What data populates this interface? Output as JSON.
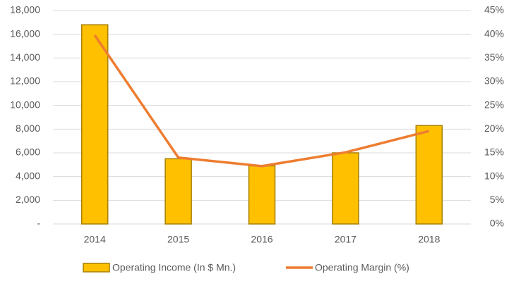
{
  "chart_data": {
    "type": "bar-line",
    "categories": [
      "2014",
      "2015",
      "2016",
      "2017",
      "2018"
    ],
    "series": [
      {
        "name": "Operating Income (In $ Mn.)",
        "type": "bar",
        "color": "#ffc000",
        "values": [
          16800,
          5500,
          4900,
          6000,
          8300
        ]
      },
      {
        "name": "Operating Margin (%)",
        "type": "line",
        "color": "#ed7d31",
        "axis": "y2",
        "values": [
          39.8,
          14,
          12.2,
          15.1,
          19.6
        ]
      }
    ],
    "ylim": [
      0,
      18000
    ],
    "yticks": [
      {
        "value": 0,
        "label": "-"
      },
      {
        "value": 2000,
        "label": "2,000"
      },
      {
        "value": 4000,
        "label": "4,000"
      },
      {
        "value": 6000,
        "label": "6,000"
      },
      {
        "value": 8000,
        "label": "8,000"
      },
      {
        "value": 10000,
        "label": "10,000"
      },
      {
        "value": 12000,
        "label": "12,000"
      },
      {
        "value": 14000,
        "label": "14,000"
      },
      {
        "value": 16000,
        "label": "16,000"
      },
      {
        "value": 18000,
        "label": "18,000"
      }
    ],
    "y2lim": [
      0,
      45
    ],
    "y2ticks": [
      {
        "value": 0,
        "label": "0%"
      },
      {
        "value": 5,
        "label": "5%"
      },
      {
        "value": 10,
        "label": "10%"
      },
      {
        "value": 15,
        "label": "15%"
      },
      {
        "value": 20,
        "label": "20%"
      },
      {
        "value": 25,
        "label": "25%"
      },
      {
        "value": 30,
        "label": "30%"
      },
      {
        "value": 35,
        "label": "35%"
      },
      {
        "value": 40,
        "label": "40%"
      },
      {
        "value": 45,
        "label": "45%"
      }
    ],
    "grid": true,
    "legend": "bottom"
  }
}
